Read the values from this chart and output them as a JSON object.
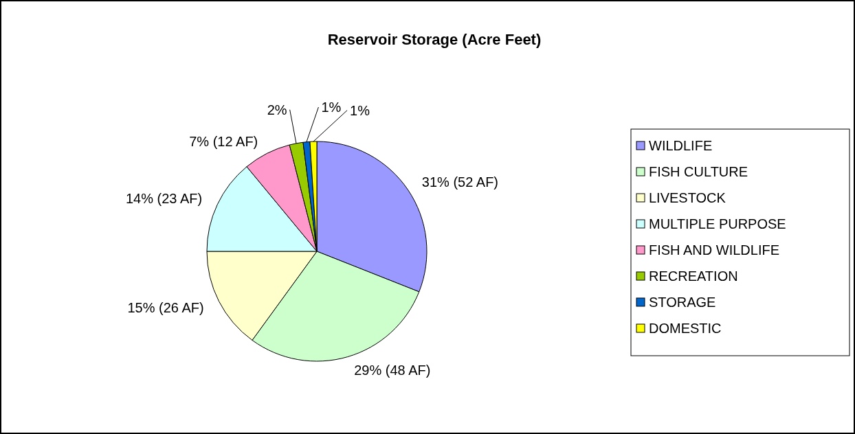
{
  "chart_data": {
    "type": "pie",
    "title": "Reservoir Storage (Acre Feet)",
    "categories": [
      "WILDLIFE",
      "FISH CULTURE",
      "LIVESTOCK",
      "MULTIPLE PURPOSE",
      "FISH AND WILDLIFE",
      "RECREATION",
      "STORAGE",
      "DOMESTIC"
    ],
    "values": [
      31,
      29,
      15,
      14,
      7,
      2,
      1,
      1
    ],
    "value_labels": [
      "31% (52 AF)",
      "29% (48 AF)",
      "15% (26 AF)",
      "14% (23 AF)",
      "7% (12 AF)",
      "2%",
      "1%",
      "1%"
    ],
    "colors": [
      "#9999ff",
      "#ccffcc",
      "#ffffcc",
      "#ccffff",
      "#ff99cc",
      "#99cc00",
      "#0066cc",
      "#ffff00"
    ],
    "legend": "right"
  }
}
